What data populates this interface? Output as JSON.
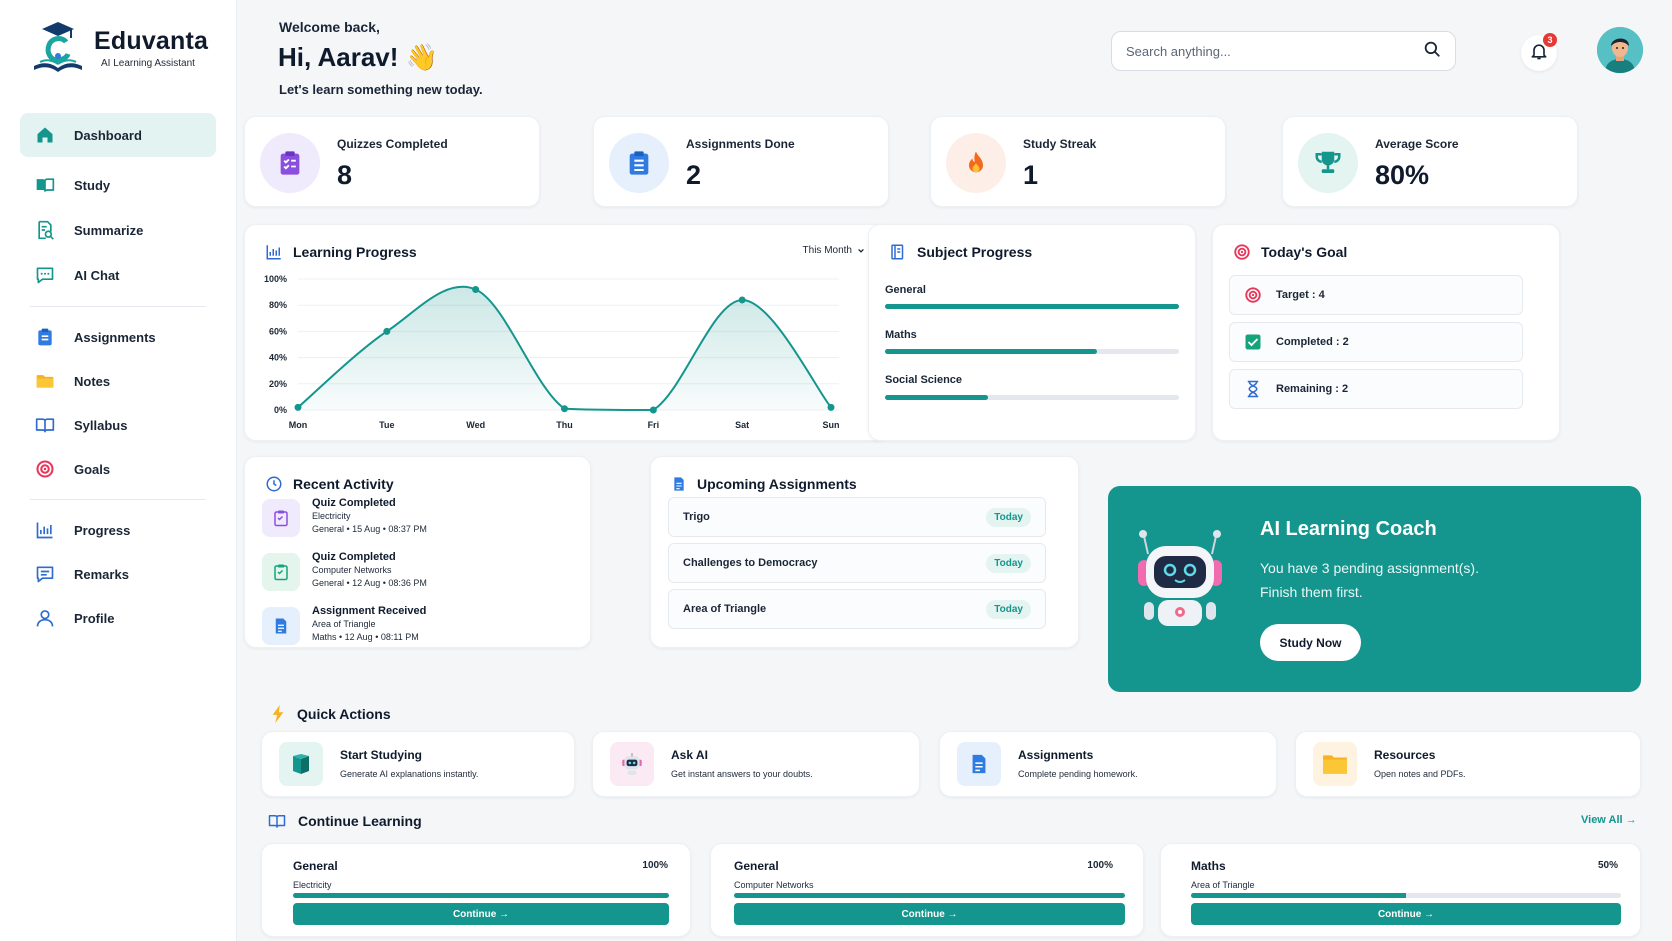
{
  "app": {
    "name": "Eduvanta",
    "subtitle": "AI Learning Assistant"
  },
  "sidebar": {
    "items": [
      {
        "label": "Dashboard",
        "icon": "home-icon",
        "active": true
      },
      {
        "label": "Study",
        "icon": "book-open-icon"
      },
      {
        "label": "Summarize",
        "icon": "document-search-icon"
      },
      {
        "label": "AI Chat",
        "icon": "chat-icon"
      },
      {
        "label": "Assignments",
        "icon": "clipboard-icon"
      },
      {
        "label": "Notes",
        "icon": "folder-icon"
      },
      {
        "label": "Syllabus",
        "icon": "book-icon"
      },
      {
        "label": "Goals",
        "icon": "target-icon"
      },
      {
        "label": "Progress",
        "icon": "bar-chart-icon"
      },
      {
        "label": "Remarks",
        "icon": "message-icon"
      },
      {
        "label": "Profile",
        "icon": "user-icon"
      }
    ]
  },
  "header": {
    "welcome": "Welcome back,",
    "greeting": "Hi, Aarav! 👋",
    "tagline": "Let's learn something new today.",
    "search_placeholder": "Search anything...",
    "notification_count": "3"
  },
  "stats": [
    {
      "label": "Quizzes Completed",
      "value": "8",
      "icon": "quiz-icon"
    },
    {
      "label": "Assignments Done",
      "value": "2",
      "icon": "assignment-icon"
    },
    {
      "label": "Study Streak",
      "value": "1",
      "icon": "fire-icon"
    },
    {
      "label": "Average Score",
      "value": "80%",
      "icon": "trophy-icon"
    }
  ],
  "learning_progress": {
    "title": "Learning Progress",
    "period": "This Month"
  },
  "chart_data": {
    "type": "area",
    "categories": [
      "Mon",
      "Tue",
      "Wed",
      "Thu",
      "Fri",
      "Sat",
      "Sun"
    ],
    "values": [
      2,
      60,
      92,
      1,
      0,
      84,
      2
    ],
    "y_ticks": [
      "100%",
      "80%",
      "60%",
      "40%",
      "20%",
      "0%"
    ],
    "ylim": [
      0,
      100
    ],
    "grid": true,
    "color": "#14958d"
  },
  "subject_progress": {
    "title": "Subject Progress",
    "subjects": [
      {
        "name": "General",
        "percent": 100
      },
      {
        "name": "Maths",
        "percent": 72
      },
      {
        "name": "Social Science",
        "percent": 35
      }
    ]
  },
  "todays_goal": {
    "title": "Today's Goal",
    "rows": [
      {
        "label": "Target : 4",
        "icon": "target-icon"
      },
      {
        "label": "Completed : 2",
        "icon": "checkbox-icon"
      },
      {
        "label": "Remaining : 2",
        "icon": "hourglass-icon"
      }
    ]
  },
  "recent_activity": {
    "title": "Recent Activity",
    "items": [
      {
        "title": "Quiz Completed",
        "subject": "Electricity",
        "meta": "General • 15 Aug • 08:37 PM"
      },
      {
        "title": "Quiz Completed",
        "subject": "Computer Networks",
        "meta": "General • 12 Aug • 08:36 PM"
      },
      {
        "title": "Assignment Received",
        "subject": "Area of Triangle",
        "meta": "Maths • 12 Aug • 08:11 PM"
      }
    ]
  },
  "upcoming_assignments": {
    "title": "Upcoming Assignments",
    "items": [
      {
        "name": "Trigo",
        "due": "Today"
      },
      {
        "name": "Challenges to Democracy",
        "due": "Today"
      },
      {
        "name": "Area of Triangle",
        "due": "Today"
      }
    ]
  },
  "coach": {
    "title": "AI Learning Coach",
    "text": "You have 3 pending assignment(s). Finish them first.",
    "button": "Study Now"
  },
  "quick_actions": {
    "title": "Quick Actions",
    "items": [
      {
        "title": "Start Studying",
        "desc": "Generate AI explanations instantly."
      },
      {
        "title": "Ask AI",
        "desc": "Get instant answers to your doubts."
      },
      {
        "title": "Assignments",
        "desc": "Complete pending homework."
      },
      {
        "title": "Resources",
        "desc": "Open notes and PDFs."
      }
    ]
  },
  "continue_learning": {
    "title": "Continue Learning",
    "view_all": "View All →",
    "items": [
      {
        "subject": "General",
        "topic": "Electricity",
        "percent_label": "100%",
        "percent": 100,
        "button": "Continue →"
      },
      {
        "subject": "General",
        "topic": "Computer Networks",
        "percent_label": "100%",
        "percent": 100,
        "button": "Continue →"
      },
      {
        "subject": "Maths",
        "topic": "Area of Triangle",
        "percent_label": "50%",
        "percent": 50,
        "button": "Continue →"
      }
    ]
  },
  "colors": {
    "accent": "#14958d",
    "background": "#f4f6f8",
    "card": "#ffffff"
  }
}
